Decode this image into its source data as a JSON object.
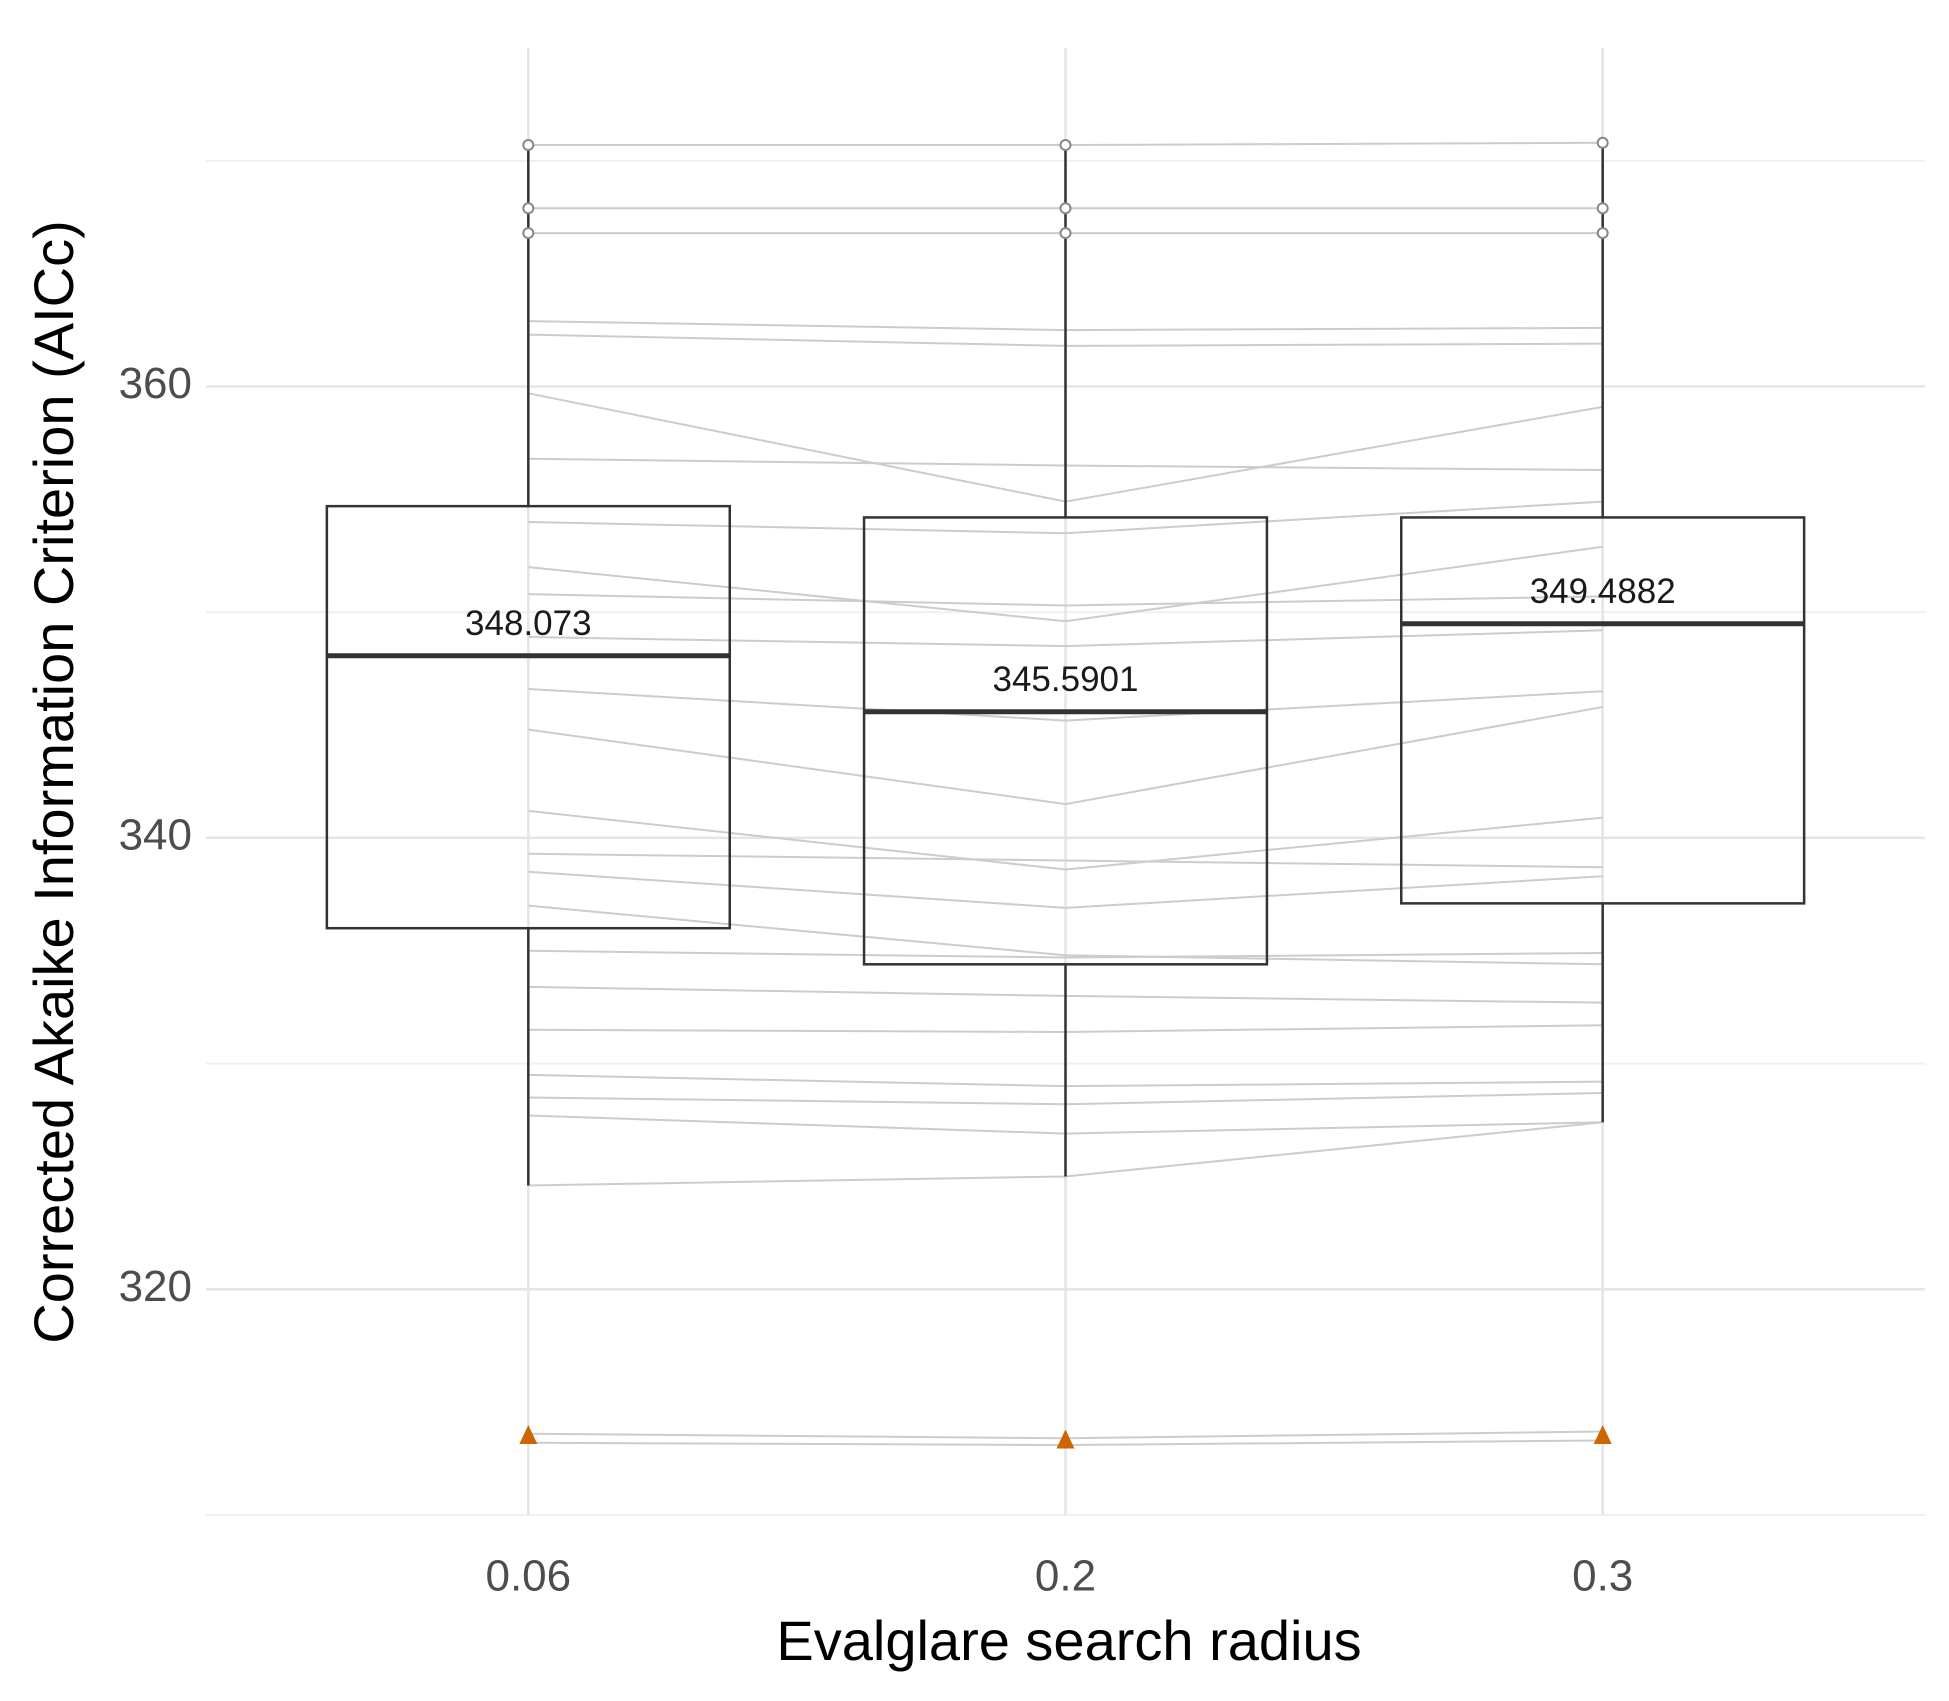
{
  "chart_data": {
    "type": "box",
    "x_label": "Evalglare search radius",
    "y_label": "Corrected Akaike Information Criterion (AICc)",
    "categories": [
      "0.06",
      "0.2",
      "0.3"
    ],
    "ylim": [
      310,
      375
    ],
    "yticks": [
      320,
      340,
      360
    ],
    "yminor": [
      310,
      330,
      350,
      370
    ],
    "grid": true,
    "boxes": [
      {
        "whisker_low": 324.6,
        "q1": 336.0,
        "median": 348.073,
        "q3": 354.7,
        "whisker_high": 370.7,
        "outliers": [
          370.7,
          367.9,
          366.8
        ]
      },
      {
        "whisker_low": 325.0,
        "q1": 334.4,
        "median": 345.5901,
        "q3": 354.2,
        "whisker_high": 370.7,
        "outliers": [
          370.7,
          367.9,
          366.8
        ]
      },
      {
        "whisker_low": 327.4,
        "q1": 337.1,
        "median": 349.4882,
        "q3": 354.2,
        "whisker_high": 370.8,
        "outliers": [
          370.8,
          367.9,
          366.8
        ]
      }
    ],
    "box_color": "#333333",
    "line_color": "#cccccc",
    "lines": [
      [
        370.7,
        370.7,
        370.8
      ],
      [
        367.9,
        367.9,
        367.9
      ],
      [
        366.8,
        366.8,
        366.8
      ],
      [
        362.9,
        362.5,
        362.6
      ],
      [
        362.3,
        361.8,
        361.9
      ],
      [
        359.7,
        354.9,
        359.1
      ],
      [
        356.8,
        356.5,
        356.3
      ],
      [
        354.0,
        353.5,
        354.9
      ],
      [
        352.0,
        349.6,
        352.9
      ],
      [
        350.8,
        350.3,
        350.7
      ],
      [
        348.9,
        348.5,
        349.2
      ],
      [
        346.6,
        345.2,
        346.5
      ],
      [
        344.8,
        341.5,
        345.8
      ],
      [
        341.2,
        338.6,
        340.9
      ],
      [
        339.3,
        339.0,
        338.7
      ],
      [
        338.5,
        336.9,
        338.3
      ],
      [
        337.0,
        334.8,
        334.4
      ],
      [
        335.0,
        334.7,
        334.9
      ],
      [
        333.4,
        333.0,
        332.7
      ],
      [
        331.5,
        331.4,
        331.7
      ],
      [
        329.5,
        329.0,
        329.2
      ],
      [
        328.5,
        328.2,
        328.7
      ],
      [
        327.7,
        326.9,
        327.4
      ],
      [
        324.6,
        325.0,
        327.4
      ],
      [
        313.6,
        313.4,
        313.7
      ],
      [
        313.2,
        313.1,
        313.3
      ]
    ],
    "highlight": {
      "color": "#cc6600",
      "values": [
        313.5,
        313.3,
        313.5
      ]
    }
  }
}
